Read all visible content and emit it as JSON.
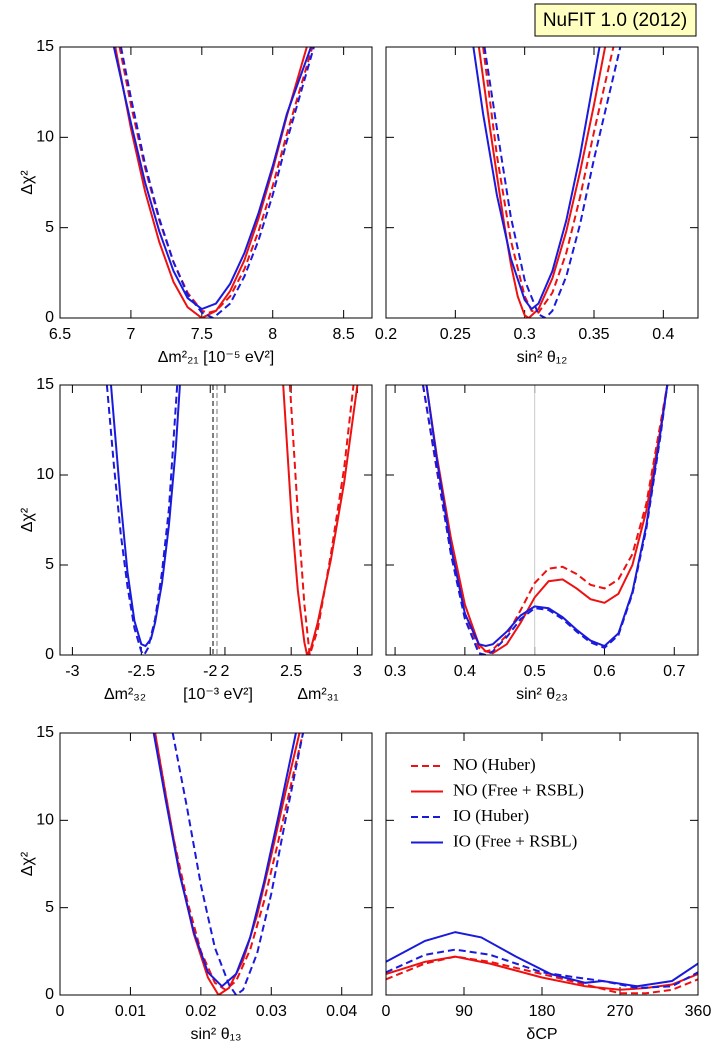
{
  "title": "NuFIT 1.0 (2012)",
  "chart_data": [
    {
      "type": "line",
      "xlabel": "Δm²₂₁ [10⁻⁵ eV²]",
      "ylabel": "Δχ²",
      "xlim": [
        6.5,
        8.7
      ],
      "xticks": [
        6.5,
        7,
        7.5,
        8,
        8.5
      ],
      "ylim": [
        0,
        15
      ],
      "yticks": [
        0,
        5,
        10,
        15
      ],
      "series": [
        {
          "color": "#ee1111",
          "dash": true,
          "x": [
            6.92,
            7.0,
            7.1,
            7.2,
            7.3,
            7.4,
            7.5,
            7.55,
            7.6,
            7.7,
            7.8,
            7.9,
            8.0,
            8.1,
            8.28
          ],
          "values": [
            15,
            11.8,
            8.3,
            5.4,
            3.1,
            1.4,
            0.4,
            0.3,
            0.4,
            1.2,
            2.7,
            4.8,
            7.3,
            10.2,
            15
          ]
        },
        {
          "color": "#ee1111",
          "dash": false,
          "x": [
            6.89,
            7.0,
            7.1,
            7.2,
            7.3,
            7.4,
            7.5,
            7.6,
            7.7,
            7.8,
            7.9,
            8.0,
            8.1,
            8.24
          ],
          "values": [
            15,
            10.5,
            7,
            4.2,
            2.0,
            0.6,
            0,
            0.4,
            1.5,
            3.2,
            5.5,
            8.2,
            11.2,
            15
          ]
        },
        {
          "color": "#1a1add",
          "dash": true,
          "x": [
            6.93,
            7.0,
            7.1,
            7.2,
            7.3,
            7.4,
            7.5,
            7.58,
            7.7,
            7.8,
            7.9,
            8.0,
            8.1,
            8.29
          ],
          "values": [
            15,
            12.2,
            8.5,
            5.5,
            3.1,
            1.3,
            0.3,
            0,
            0.8,
            2.3,
            4.3,
            6.8,
            9.8,
            15
          ]
        },
        {
          "color": "#1a1add",
          "dash": false,
          "x": [
            6.88,
            7.0,
            7.1,
            7.2,
            7.3,
            7.4,
            7.5,
            7.6,
            7.7,
            7.8,
            7.9,
            8.0,
            8.1,
            8.27
          ],
          "values": [
            15,
            10.8,
            7.5,
            4.8,
            2.6,
            1.1,
            0.5,
            0.8,
            1.9,
            3.6,
            5.8,
            8.4,
            11.3,
            15
          ]
        }
      ]
    },
    {
      "type": "line",
      "xlabel": "sin² θ₁₂",
      "xlim": [
        0.2,
        0.425
      ],
      "xticks": [
        0.2,
        0.25,
        0.3,
        0.35,
        0.4
      ],
      "ylim": [
        0,
        15
      ],
      "yticks": [
        0,
        5,
        10,
        15
      ],
      "ytick_labels": false,
      "series": [
        {
          "color": "#ee1111",
          "dash": true,
          "x": [
            0.27,
            0.28,
            0.29,
            0.3,
            0.305,
            0.31,
            0.32,
            0.33,
            0.34,
            0.35,
            0.364
          ],
          "values": [
            15,
            9.0,
            4.3,
            1.2,
            0.4,
            0.3,
            1.4,
            3.6,
            6.7,
            10.3,
            15
          ]
        },
        {
          "color": "#ee1111",
          "dash": false,
          "x": [
            0.267,
            0.275,
            0.28,
            0.285,
            0.29,
            0.295,
            0.3,
            0.303,
            0.31,
            0.32,
            0.33,
            0.34,
            0.35,
            0.358
          ],
          "values": [
            15,
            10.5,
            7.9,
            5.3,
            3.0,
            1.2,
            0.15,
            0,
            0.5,
            2.2,
            4.8,
            8.1,
            11.8,
            15
          ]
        },
        {
          "color": "#1a1add",
          "dash": true,
          "x": [
            0.271,
            0.28,
            0.29,
            0.3,
            0.31,
            0.315,
            0.32,
            0.33,
            0.34,
            0.35,
            0.369
          ],
          "values": [
            15,
            10.5,
            5.6,
            2.1,
            0.2,
            0,
            0.4,
            2.3,
            5.2,
            8.8,
            15
          ]
        },
        {
          "color": "#1a1add",
          "dash": false,
          "x": [
            0.263,
            0.27,
            0.28,
            0.29,
            0.3,
            0.305,
            0.31,
            0.32,
            0.33,
            0.34,
            0.354
          ],
          "values": [
            15,
            11.3,
            6.8,
            3.3,
            1.0,
            0.5,
            0.8,
            2.6,
            5.4,
            9.0,
            15
          ]
        }
      ]
    },
    {
      "type": "line",
      "xlabel": [
        "Δm²₃₂",
        "[10⁻³ eV²]",
        "Δm²₃₁"
      ],
      "ylabel": "Δχ²",
      "segments": [
        {
          "xlim": [
            -3.09,
            -1.98
          ],
          "xticks": [
            -3,
            -2.5,
            -2
          ]
        },
        {
          "xlim": [
            1.94,
            3.11
          ],
          "xticks": [
            2,
            2.5,
            3
          ]
        }
      ],
      "ylim": [
        0,
        15
      ],
      "yticks": [
        0,
        5,
        10,
        15
      ],
      "series": [
        {
          "color": "#ee1111",
          "dash": true,
          "segment": 1,
          "x": [
            2.49,
            2.55,
            2.6,
            2.64,
            2.7,
            2.8,
            2.9,
            2.97
          ],
          "values": [
            15,
            7.9,
            2.8,
            0,
            1.4,
            5.6,
            10.4,
            15
          ]
        },
        {
          "color": "#ee1111",
          "dash": false,
          "segment": 1,
          "x": [
            2.44,
            2.5,
            2.55,
            2.6,
            2.62,
            2.65,
            2.7,
            2.8,
            2.9,
            3.0
          ],
          "values": [
            15,
            8.0,
            3.6,
            0.7,
            0,
            0.4,
            1.8,
            5.3,
            9.6,
            15
          ]
        },
        {
          "color": "#1a1add",
          "dash": true,
          "segment": 0,
          "x": [
            -2.75,
            -2.7,
            -2.65,
            -2.6,
            -2.55,
            -2.5,
            -2.48,
            -2.45,
            -2.4,
            -2.35,
            -2.3,
            -2.24
          ],
          "values": [
            15,
            10.6,
            6.8,
            3.8,
            1.5,
            0.2,
            0,
            0.4,
            2.0,
            4.6,
            8.1,
            15
          ]
        },
        {
          "color": "#1a1add",
          "dash": false,
          "segment": 0,
          "x": [
            -2.72,
            -2.65,
            -2.6,
            -2.55,
            -2.5,
            -2.47,
            -2.43,
            -2.4,
            -2.35,
            -2.3,
            -2.25,
            -2.22
          ],
          "values": [
            15,
            8.6,
            4.6,
            1.9,
            0.6,
            0.5,
            0.9,
            1.8,
            4.0,
            7.2,
            11.5,
            15
          ]
        }
      ]
    },
    {
      "type": "line",
      "xlabel": "sin² θ₂₃",
      "xlim": [
        0.287,
        0.734
      ],
      "xticks": [
        0.3,
        0.4,
        0.5,
        0.6,
        0.7
      ],
      "ylim": [
        0,
        15
      ],
      "yticks": [
        0,
        5,
        10,
        15
      ],
      "ytick_labels": false,
      "reference_line": 0.5,
      "series": [
        {
          "color": "#ee1111",
          "dash": true,
          "x": [
            0.34,
            0.36,
            0.38,
            0.4,
            0.42,
            0.43,
            0.44,
            0.46,
            0.48,
            0.5,
            0.52,
            0.54,
            0.56,
            0.58,
            0.6,
            0.62,
            0.64,
            0.66,
            0.68,
            0.69
          ],
          "values": [
            15,
            10.2,
            5.7,
            2.3,
            0.4,
            0.2,
            0.3,
            1.1,
            2.5,
            4.0,
            4.8,
            4.9,
            4.5,
            3.9,
            3.7,
            4.2,
            5.6,
            8.4,
            12.8,
            15
          ]
        },
        {
          "color": "#ee1111",
          "dash": false,
          "x": [
            0.345,
            0.36,
            0.38,
            0.4,
            0.42,
            0.43,
            0.44,
            0.46,
            0.48,
            0.5,
            0.52,
            0.54,
            0.56,
            0.58,
            0.6,
            0.62,
            0.64,
            0.66,
            0.68,
            0.69
          ],
          "values": [
            15,
            11,
            6.5,
            2.8,
            0.6,
            0.2,
            0.1,
            0.6,
            1.8,
            3.2,
            4.1,
            4.2,
            3.7,
            3.1,
            2.9,
            3.4,
            5.0,
            8.0,
            12.5,
            15
          ]
        },
        {
          "color": "#1a1add",
          "dash": true,
          "x": [
            0.34,
            0.36,
            0.38,
            0.4,
            0.42,
            0.43,
            0.44,
            0.46,
            0.48,
            0.5,
            0.52,
            0.54,
            0.56,
            0.58,
            0.6,
            0.62,
            0.64,
            0.66,
            0.68,
            0.69
          ],
          "values": [
            15,
            10.3,
            5.6,
            2.0,
            0.1,
            0,
            0.2,
            1.0,
            2.0,
            2.6,
            2.5,
            2.0,
            1.3,
            0.7,
            0.4,
            1.1,
            3.4,
            7.0,
            12.1,
            15
          ]
        },
        {
          "color": "#1a1add",
          "dash": false,
          "x": [
            0.345,
            0.36,
            0.38,
            0.4,
            0.42,
            0.43,
            0.44,
            0.46,
            0.48,
            0.5,
            0.52,
            0.54,
            0.56,
            0.58,
            0.6,
            0.62,
            0.64,
            0.66,
            0.68,
            0.69
          ],
          "values": [
            15,
            10.8,
            6.0,
            2.3,
            0.6,
            0.5,
            0.6,
            1.3,
            2.2,
            2.7,
            2.6,
            2.1,
            1.4,
            0.8,
            0.5,
            1.2,
            3.5,
            7.2,
            12.3,
            15
          ]
        }
      ]
    },
    {
      "type": "line",
      "xlabel": "sin² θ₁₃",
      "ylabel": "Δχ²",
      "xlim": [
        0,
        0.0443
      ],
      "xticks": [
        0,
        0.01,
        0.02,
        0.03,
        0.04
      ],
      "ylim": [
        0,
        15
      ],
      "yticks": [
        0,
        5,
        10,
        15
      ],
      "series": [
        {
          "color": "#ee1111",
          "dash": true,
          "x": [
            0.0135,
            0.016,
            0.018,
            0.02,
            0.022,
            0.0235,
            0.025,
            0.027,
            0.029,
            0.031,
            0.033,
            0.0345
          ],
          "values": [
            15,
            9.2,
            5.5,
            2.5,
            0.7,
            0.3,
            0.8,
            2.6,
            5.4,
            8.8,
            12.4,
            15
          ]
        },
        {
          "color": "#ee1111",
          "dash": false,
          "x": [
            0.0135,
            0.015,
            0.017,
            0.019,
            0.021,
            0.0225,
            0.024,
            0.026,
            0.028,
            0.03,
            0.032,
            0.034
          ],
          "values": [
            15,
            11.5,
            7.0,
            3.5,
            1.0,
            0,
            0.4,
            2.0,
            4.6,
            8.0,
            11.6,
            15
          ]
        },
        {
          "color": "#1a1add",
          "dash": true,
          "x": [
            0.016,
            0.018,
            0.02,
            0.022,
            0.024,
            0.025,
            0.026,
            0.028,
            0.03,
            0.032,
            0.0345
          ],
          "values": [
            15,
            10.8,
            6.3,
            2.7,
            0.6,
            0,
            0.3,
            2.4,
            5.8,
            10.0,
            15
          ]
        },
        {
          "color": "#1a1add",
          "dash": false,
          "x": [
            0.0133,
            0.015,
            0.017,
            0.019,
            0.021,
            0.023,
            0.025,
            0.027,
            0.029,
            0.031,
            0.0335
          ],
          "values": [
            15,
            11.2,
            6.9,
            3.6,
            1.3,
            0.5,
            1.2,
            3.3,
            6.5,
            10.2,
            15
          ]
        }
      ]
    },
    {
      "type": "line",
      "xlabel": "δCP",
      "xlim": [
        0,
        360
      ],
      "xticks": [
        0,
        90,
        180,
        270,
        360
      ],
      "ylim": [
        0,
        15
      ],
      "yticks": [
        0,
        5,
        10,
        15
      ],
      "ytick_labels": false,
      "legend": "upper left",
      "series": [
        {
          "name": "NO (Huber)",
          "color": "#ee1111",
          "dash": true,
          "x": [
            0,
            45,
            80,
            120,
            180,
            230,
            270,
            300,
            330,
            360
          ],
          "values": [
            0.9,
            1.8,
            2.2,
            1.9,
            1.2,
            0.6,
            0.1,
            0.1,
            0.3,
            0.9
          ]
        },
        {
          "name": "NO (Free + RSBL)",
          "color": "#ee1111",
          "dash": false,
          "x": [
            0,
            45,
            80,
            120,
            180,
            230,
            270,
            300,
            330,
            360
          ],
          "values": [
            1.2,
            1.9,
            2.2,
            1.8,
            1.0,
            0.5,
            0.3,
            0.4,
            0.6,
            1.2
          ]
        },
        {
          "name": "IO (Huber)",
          "color": "#1a1add",
          "dash": true,
          "x": [
            0,
            45,
            80,
            120,
            180,
            220,
            250,
            290,
            330,
            360
          ],
          "values": [
            1.3,
            2.3,
            2.6,
            2.3,
            1.3,
            1.0,
            0.8,
            0.4,
            0.5,
            1.3
          ]
        },
        {
          "name": "IO (Free + RSBL)",
          "color": "#1a1add",
          "dash": false,
          "x": [
            0,
            45,
            80,
            110,
            150,
            190,
            230,
            250,
            290,
            330,
            360
          ],
          "values": [
            1.9,
            3.1,
            3.6,
            3.3,
            2.2,
            1.2,
            0.7,
            0.8,
            0.5,
            0.8,
            1.8
          ]
        }
      ]
    }
  ]
}
